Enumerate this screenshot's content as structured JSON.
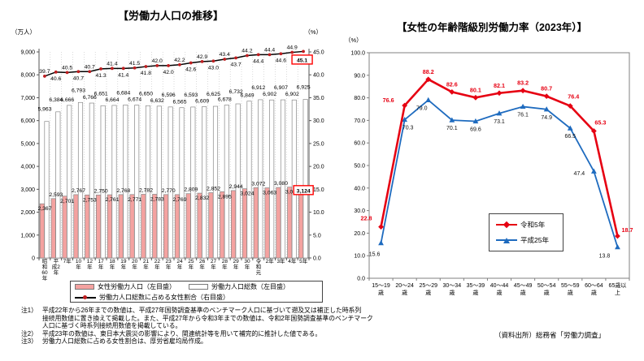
{
  "left_chart": {
    "title": "【労働力人口の推移】",
    "legend": {
      "female": "女性労働力人口（左目盛）",
      "total": "労働力人口総数（左目盛）",
      "ratio": "労働力人口総数に占める女性割合（右目盛）"
    }
  },
  "right_chart": {
    "title": "【女性の年齢階級別労働力率（2023年）】",
    "legend": {
      "reiwa5": "令和5年",
      "heisei25": "平成25年"
    }
  },
  "notes": [
    {
      "label": "注1）",
      "text": "平成22年から26年までの数値は、平成27年国勢調査基準のベンチマーク人口に基づいて遡及又は補正した時系列\n接続用数値に置き換えて掲載した。また、平成27年から令和3年までの数値は、令和2年国勢調査基準のベンチマーク\n人口に基づく時系列接続用数値を掲載している。"
    },
    {
      "label": "注2）",
      "text": "平成23年の数値は、東日本大震災の影響により、関連統計等を用いて補完的に推計した値である。"
    },
    {
      "label": "注3）",
      "text": "労働力人口総数に占める女性割合は、厚労省雇均局作成。"
    }
  ],
  "source": "（資料出所）総務省「労働力調査」",
  "colors": {
    "female_bar_fill": "#F4A2A0",
    "bar_stroke": "#888888",
    "total_bar_fill": "#FFFFFF",
    "trend_line": "#000000",
    "trend_marker": "#BE1E20",
    "highlight_box": "#FF0000",
    "reiwa5_line": "#E60012",
    "heisei25_line": "#1E6BBF",
    "axis": "#555555"
  },
  "chart_data": [
    {
      "type": "bar",
      "title": "【労働力人口の推移】",
      "categories": [
        "昭和60年",
        "平成2年",
        "7年",
        "10年",
        "12年",
        "17年",
        "18年",
        "19年",
        "20年",
        "21年",
        "22年",
        "23年",
        "24年",
        "25年",
        "26年",
        "27年",
        "28年",
        "29年",
        "30年",
        "令和元",
        "2年",
        "3年",
        "4年",
        "5年"
      ],
      "tick_lines": [
        [
          "昭",
          "和",
          "60",
          "年"
        ],
        [
          "平",
          "成2",
          "年"
        ],
        [
          "7年"
        ],
        [
          "10",
          "年"
        ],
        [
          "12",
          "年"
        ],
        [
          "17",
          "年"
        ],
        [
          "18",
          "年"
        ],
        [
          "19",
          "年"
        ],
        [
          "20",
          "年"
        ],
        [
          "21",
          "年"
        ],
        [
          "22",
          "年"
        ],
        [
          "23",
          "年"
        ],
        [
          "24",
          "年"
        ],
        [
          "25",
          "年"
        ],
        [
          "26",
          "年"
        ],
        [
          "27",
          "年"
        ],
        [
          "28",
          "年"
        ],
        [
          "29",
          "年"
        ],
        [
          "30",
          "年"
        ],
        [
          "令",
          "和",
          "元"
        ],
        [
          "2年"
        ],
        [
          "3年"
        ],
        [
          "4年"
        ],
        [
          "5年"
        ]
      ],
      "series": [
        {
          "name": "女性労働力人口（左目盛）",
          "kind": "bar",
          "axis": "left",
          "boxed_last": true,
          "values": [
            2367,
            2593,
            2701,
            2767,
            2753,
            2750,
            2761,
            2768,
            2771,
            2782,
            2783,
            2770,
            2769,
            2809,
            2832,
            2852,
            2895,
            2944,
            3024,
            3072,
            3063,
            3080,
            3096,
            3124
          ]
        },
        {
          "name": "労働力人口総数（左目盛）",
          "kind": "bar",
          "axis": "left",
          "boxed_last": false,
          "values": [
            5963,
            6384,
            6666,
            6793,
            6766,
            6651,
            6664,
            6684,
            6674,
            6650,
            6632,
            6596,
            6565,
            6593,
            6609,
            6625,
            6678,
            6732,
            6849,
            6912,
            6902,
            6907,
            6902,
            6925
          ]
        },
        {
          "name": "労働力人口総数に占める女性割合（右目盛）",
          "kind": "line",
          "axis": "right",
          "boxed_last": true,
          "values": [
            39.7,
            40.6,
            40.5,
            40.7,
            40.7,
            41.3,
            41.4,
            41.4,
            41.5,
            41.8,
            42.0,
            42.0,
            42.2,
            42.6,
            42.9,
            43.0,
            43.4,
            43.7,
            44.2,
            44.4,
            44.4,
            44.6,
            44.9,
            45.1
          ]
        }
      ],
      "y_left": {
        "unit": "（万人）",
        "min": 0,
        "max": 9000,
        "step": 1000
      },
      "y_right": {
        "unit": "（%）",
        "min": 0,
        "max": 45,
        "step": 5
      },
      "grid": "vertical-dotted",
      "legend_position": "bottom"
    },
    {
      "type": "line",
      "title": "【女性の年齢階級別労働力率（2023年）】",
      "categories": [
        "15〜19歳",
        "20〜24歳",
        "25〜29歳",
        "30〜34歳",
        "35〜39歳",
        "40〜44歳",
        "45〜49歳",
        "50〜54歳",
        "55〜59歳",
        "60〜64歳",
        "65歳以上"
      ],
      "tick_lines": [
        [
          "15〜19",
          "歳"
        ],
        [
          "20〜24",
          "歳"
        ],
        [
          "25〜29",
          "歳"
        ],
        [
          "30〜34",
          "歳"
        ],
        [
          "35〜39",
          "歳"
        ],
        [
          "40〜44",
          "歳"
        ],
        [
          "45〜49",
          "歳"
        ],
        [
          "50〜54",
          "歳"
        ],
        [
          "55〜59",
          "歳"
        ],
        [
          "60〜64",
          "歳"
        ],
        [
          "65歳以",
          "上"
        ]
      ],
      "series": [
        {
          "name": "令和5年",
          "color_key": "reiwa5_line",
          "marker": "diamond",
          "values": [
            22.8,
            76.6,
            88.2,
            82.6,
            80.1,
            82.1,
            83.2,
            80.7,
            76.4,
            65.3,
            18.7
          ]
        },
        {
          "name": "平成25年",
          "color_key": "heisei25_line",
          "marker": "triangle",
          "values": [
            15.6,
            70.3,
            79.0,
            70.1,
            69.6,
            73.1,
            76.1,
            74.9,
            66.5,
            47.4,
            13.8
          ]
        }
      ],
      "ylabel": "（%）",
      "y": {
        "unit": "（%）",
        "min": 0,
        "max": 100,
        "step": 10
      },
      "grid": "off",
      "legend_position": "inside-lower-right"
    }
  ]
}
